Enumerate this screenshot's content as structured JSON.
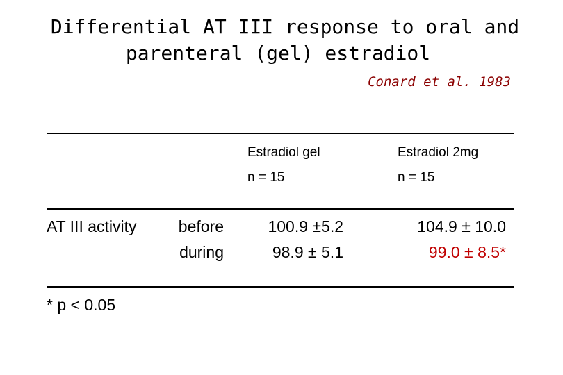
{
  "title": {
    "line1": "Differential AT III response to oral and",
    "line2": "parenteral (gel) estradiol"
  },
  "citation": "Conard et al. 1983",
  "table": {
    "columns": [
      {
        "name": "Estradiol gel",
        "n": "n = 15"
      },
      {
        "name": "Estradiol 2mg",
        "n": "n = 15"
      }
    ],
    "row_label": "AT III activity",
    "row_sublabels": [
      "before",
      "during"
    ],
    "gel_values": [
      "100.9 ±5.2",
      "98.9 ± 5.1"
    ],
    "oral_values": [
      "104.9 ± 10.0",
      "99.0 ± 8.5*"
    ]
  },
  "footnote": "* p < 0.05",
  "colors": {
    "citation": "#8b0000",
    "significant_value": "#c00000"
  }
}
